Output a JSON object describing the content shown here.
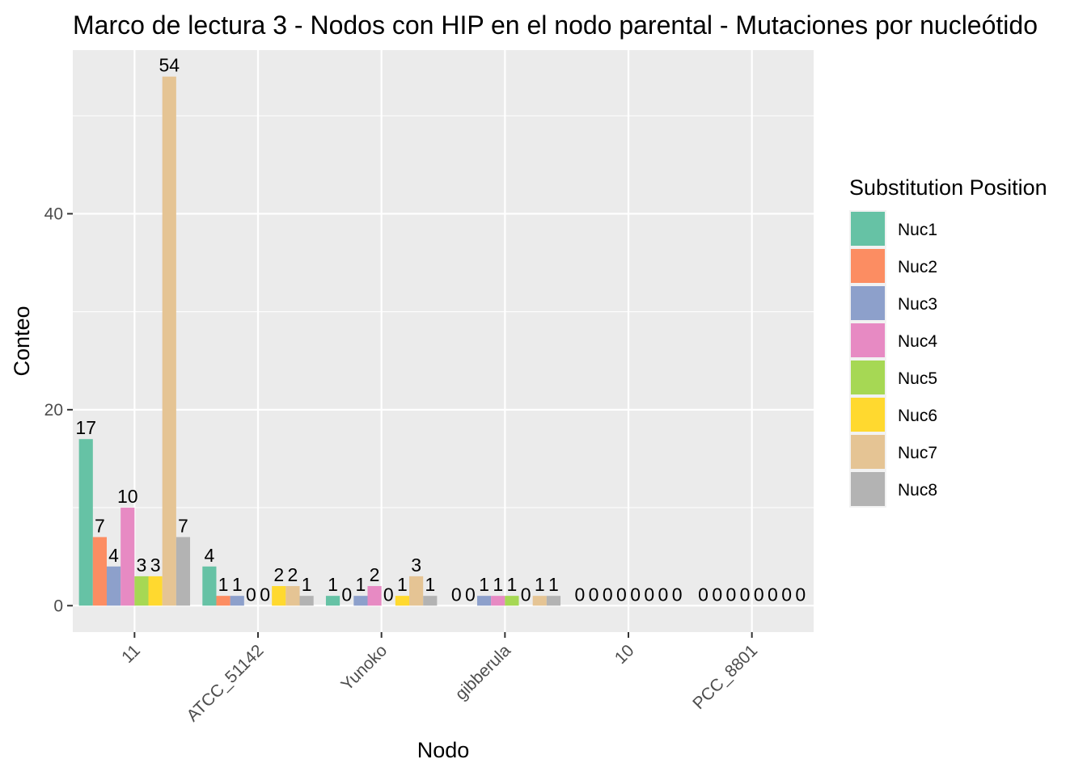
{
  "chart_data": {
    "type": "bar",
    "title": "Marco de lectura 3 - Nodos con HIP en el nodo parental - Mutaciones por nucleótido",
    "xlabel": "Nodo",
    "ylabel": "Conteo",
    "categories": [
      "11",
      "ATCC_51142",
      "Yunoko",
      "gibberula",
      "10",
      "PCC_8801"
    ],
    "ylim": [
      -2.7,
      56.7
    ],
    "yticks": [
      0,
      20,
      40
    ],
    "grid": true,
    "legend": {
      "title": "Substitution Position",
      "placement": "right"
    },
    "series": [
      {
        "name": "Nuc1",
        "color": "#66c2a5",
        "values": [
          17,
          4,
          1,
          0,
          0,
          0
        ]
      },
      {
        "name": "Nuc2",
        "color": "#fc8d62",
        "values": [
          7,
          1,
          0,
          0,
          0,
          0
        ]
      },
      {
        "name": "Nuc3",
        "color": "#8da0cb",
        "values": [
          4,
          1,
          1,
          1,
          0,
          0
        ]
      },
      {
        "name": "Nuc4",
        "color": "#e78ac3",
        "values": [
          10,
          0,
          2,
          1,
          0,
          0
        ]
      },
      {
        "name": "Nuc5",
        "color": "#a6d854",
        "values": [
          3,
          0,
          0,
          1,
          0,
          0
        ]
      },
      {
        "name": "Nuc6",
        "color": "#ffd92f",
        "values": [
          3,
          2,
          1,
          0,
          0,
          0
        ]
      },
      {
        "name": "Nuc7",
        "color": "#e5c494",
        "values": [
          54,
          2,
          3,
          1,
          0,
          0
        ]
      },
      {
        "name": "Nuc8",
        "color": "#b3b3b3",
        "values": [
          7,
          1,
          1,
          1,
          0,
          0
        ]
      }
    ]
  }
}
